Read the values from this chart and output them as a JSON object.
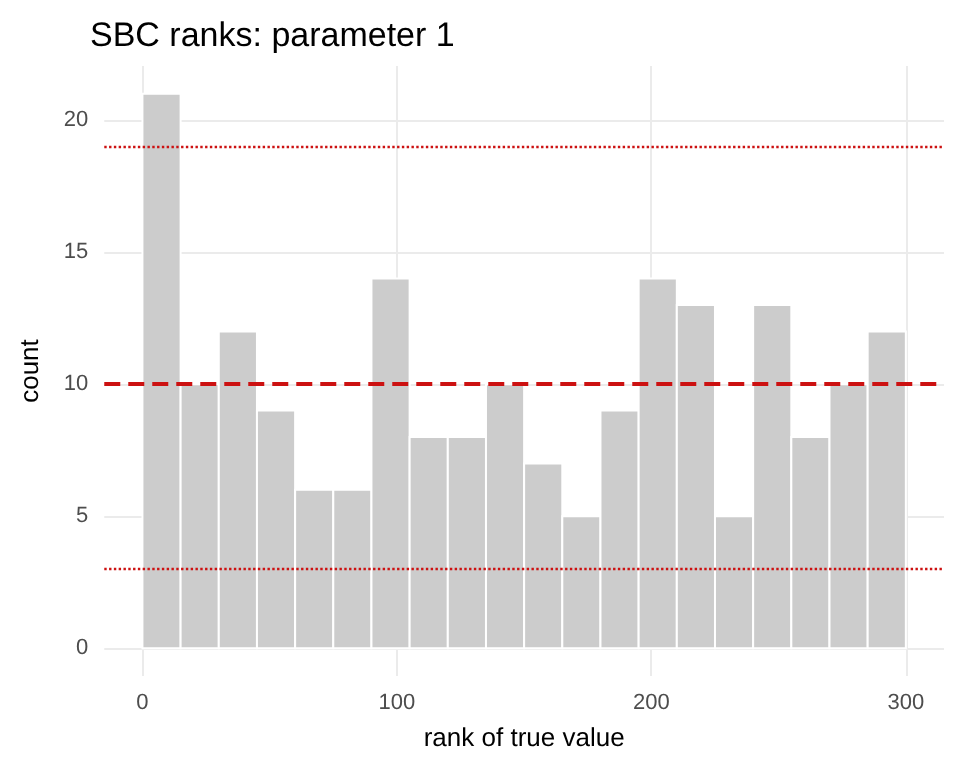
{
  "chart_data": {
    "type": "histogram",
    "title": "SBC ranks: parameter 1",
    "xlabel": "rank of true value",
    "ylabel": "count",
    "bins": [
      0,
      15,
      30,
      45,
      60,
      75,
      90,
      105,
      120,
      135,
      150,
      165,
      180,
      195,
      210,
      225,
      240,
      255,
      270,
      285,
      300
    ],
    "values": [
      21,
      10,
      12,
      9,
      6,
      6,
      14,
      8,
      8,
      10,
      7,
      5,
      9,
      14,
      13,
      5,
      13,
      8,
      10,
      12
    ],
    "color": "#cccccc",
    "xlim": [
      -15,
      315
    ],
    "xticks": [
      0,
      100,
      200,
      300
    ],
    "ylim": [
      -1.05,
      22.05
    ],
    "yticks": [
      0,
      5,
      10,
      15,
      20
    ],
    "grid": true,
    "ref_lines": [
      {
        "axis": "y",
        "value": 10,
        "color": "#cc1111",
        "line_style": "dashed"
      },
      {
        "axis": "y",
        "value": 19,
        "color": "#cc1111",
        "line_style": "dotted"
      },
      {
        "axis": "y",
        "value": 3,
        "color": "#cc1111",
        "line_style": "dotted"
      }
    ]
  }
}
